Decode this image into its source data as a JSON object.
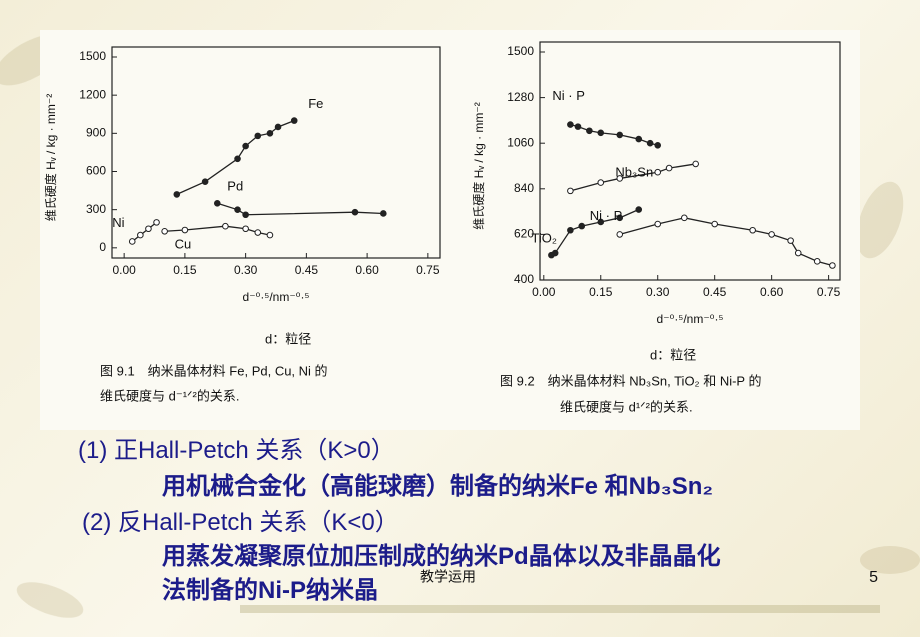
{
  "chart_data": [
    {
      "type": "line",
      "y_label": "维氏硬度 Hᵥ / kg · mm⁻²",
      "x_label": "d⁻⁰·⁵/nm⁻⁰·⁵",
      "caption": [
        "d：粒径",
        "图 9.1　纳米晶体材料 Fe, Pd, Cu, Ni 的",
        "维氏硬度与 d⁻¹ᐟ²的关系."
      ],
      "xlim": [
        -0.03,
        0.78
      ],
      "ylim": [
        -80,
        1500
      ],
      "xticks": [
        {
          "value": 0,
          "label": "0.00"
        },
        {
          "value": 0.15,
          "label": "0.15"
        },
        {
          "value": 0.3,
          "label": "0.30"
        },
        {
          "value": 0.45,
          "label": "0.45"
        },
        {
          "value": 0.6,
          "label": "0.60"
        },
        {
          "value": 0.75,
          "label": "0.75"
        }
      ],
      "yticks": [
        0,
        300,
        600,
        900,
        1200,
        1500
      ],
      "series": [
        {
          "name": "Fe",
          "color": "#222222",
          "x": [
            0.13,
            0.2,
            0.28,
            0.3,
            0.33,
            0.36,
            0.38,
            0.42
          ],
          "values": [
            420,
            520,
            700,
            800,
            880,
            900,
            950,
            1000
          ]
        },
        {
          "name": "Ni",
          "color": "#222222",
          "x": [
            0.02,
            0.04,
            0.06,
            0.08
          ],
          "values": [
            50,
            100,
            150,
            200
          ]
        },
        {
          "name": "Pd",
          "color": "#222222",
          "x": [
            0.23,
            0.28,
            0.3,
            0.57,
            0.64
          ],
          "values": [
            350,
            300,
            260,
            280,
            270
          ]
        },
        {
          "name": "Cu",
          "color": "#222222",
          "x": [
            0.1,
            0.15,
            0.25,
            0.3,
            0.33,
            0.36
          ],
          "values": [
            130,
            140,
            170,
            150,
            120,
            100
          ]
        }
      ]
    },
    {
      "type": "line",
      "y_label": "维氏硬度 Hᵥ / kg · mm⁻²",
      "x_label": "d⁻⁰·⁵/nm⁻⁰·⁵",
      "caption": [
        "d：粒径",
        "图 9.2　纳米晶体材料 Nb₃Sn, TiO₂ 和 Ni-P 的",
        "维氏硬度与 d¹ᐟ²的关系."
      ],
      "xlim": [
        -0.01,
        0.78
      ],
      "ylim": [
        400,
        1500
      ],
      "xticks": [
        {
          "value": 0,
          "label": "0.00"
        },
        {
          "value": 0.15,
          "label": "0.15"
        },
        {
          "value": 0.3,
          "label": "0.30"
        },
        {
          "value": 0.45,
          "label": "0.45"
        },
        {
          "value": 0.6,
          "label": "0.60"
        },
        {
          "value": 0.75,
          "label": "0.75"
        }
      ],
      "yticks": [
        400,
        620,
        840,
        1060,
        1280,
        1500
      ],
      "series": [
        {
          "name": "Ni · P",
          "color": "#222222",
          "x": [
            0.07,
            0.09,
            0.12,
            0.15,
            0.2,
            0.25,
            0.28,
            0.3
          ],
          "values": [
            1150,
            1140,
            1120,
            1110,
            1100,
            1080,
            1060,
            1050
          ]
        },
        {
          "name": "Nb₃Sn",
          "color": "#222222",
          "x": [
            0.07,
            0.15,
            0.2,
            0.3,
            0.33,
            0.4
          ],
          "values": [
            830,
            870,
            890,
            920,
            940,
            960
          ]
        },
        {
          "name": "TiO₂",
          "color": "#222222",
          "x": [
            0.02,
            0.03,
            0.07,
            0.1,
            0.15,
            0.2,
            0.25
          ],
          "values": [
            520,
            530,
            640,
            660,
            680,
            700,
            740
          ]
        },
        {
          "name": "Ni · P",
          "color": "#222222",
          "x": [
            0.2,
            0.3,
            0.37,
            0.45,
            0.55,
            0.6,
            0.65,
            0.67,
            0.72,
            0.76
          ],
          "values": [
            620,
            670,
            700,
            670,
            640,
            620,
            590,
            530,
            490,
            470
          ]
        }
      ]
    }
  ],
  "body": [
    "(1) 正Hall-Petch 关系（K>0）",
    "用机械合金化（高能球磨）制备的纳米Fe 和Nb₃Sn₂",
    "(2) 反Hall-Petch 关系（K<0）",
    "用蒸发凝聚原位加压制成的纳米Pd晶体以及非晶晶化",
    "法制备的Ni-P纳米晶"
  ],
  "watermark": "教学运用",
  "page_number": "5"
}
